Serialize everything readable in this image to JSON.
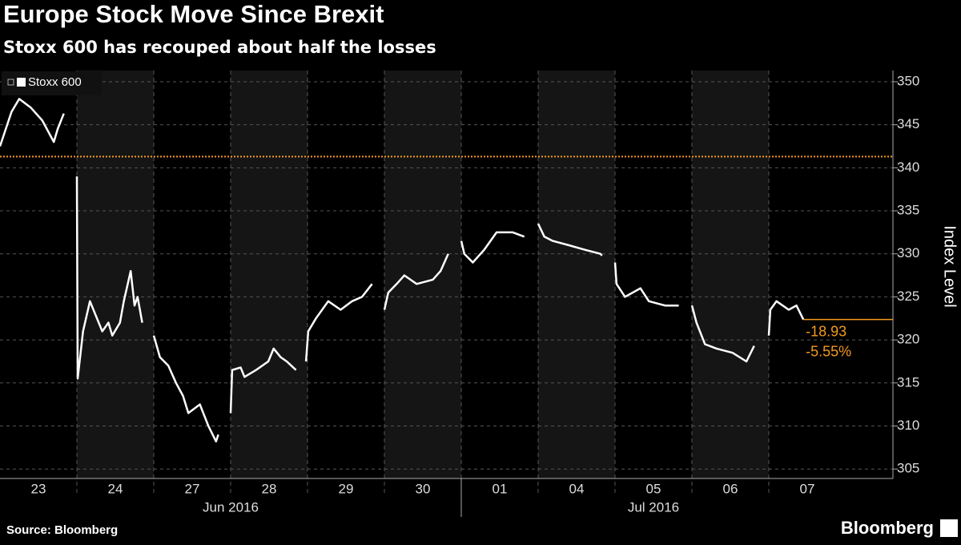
{
  "chart_data": {
    "type": "line",
    "title": "Europe Stock Move Since Brexit",
    "subtitle": "Stoxx 600 has recouped about half the losses",
    "y_axis_label": "Index Level",
    "source": "Source: Bloomberg",
    "brand": "Bloomberg",
    "x": [
      0,
      0.15,
      0.25,
      0.4,
      0.55,
      0.7,
      0.75,
      0.83,
      null,
      1.0,
      1.01,
      1.08,
      1.17,
      1.33,
      1.41,
      1.46,
      1.56,
      1.61,
      1.7,
      1.75,
      1.79,
      1.85,
      null,
      2.0,
      2.08,
      2.19,
      2.29,
      2.38,
      2.45,
      2.6,
      2.71,
      2.81,
      2.84,
      null,
      3.0,
      3.02,
      3.13,
      3.18,
      3.33,
      3.49,
      3.56,
      3.65,
      3.73,
      3.85,
      null,
      3.98,
      4.01,
      4.11,
      4.27,
      4.43,
      4.58,
      4.71,
      4.84,
      null,
      5.0,
      5.05,
      5.16,
      5.26,
      5.42,
      5.63,
      5.73,
      5.83,
      null,
      6.0,
      6.04,
      6.15,
      6.3,
      6.46,
      6.67,
      6.82,
      null,
      7.0,
      7.08,
      7.19,
      7.4,
      7.6,
      7.81,
      7.83,
      null,
      8.0,
      8.02,
      8.13,
      8.33,
      8.44,
      8.65,
      8.83,
      null,
      9.0,
      9.06,
      9.17,
      9.32,
      9.53,
      9.71,
      9.81,
      null,
      10.0,
      10.02,
      10.1,
      10.26,
      10.36,
      10.45
    ],
    "series": [
      {
        "name": "Stoxx 600",
        "color": "#ffffff",
        "values": [
          342.5,
          346.5,
          348,
          347,
          345.5,
          343,
          344.5,
          346.3,
          null,
          339,
          315.5,
          321,
          324.5,
          321,
          322,
          320.5,
          322,
          324.5,
          328,
          324,
          325,
          322,
          null,
          320.5,
          318,
          317,
          315,
          313.5,
          311.5,
          312.5,
          310,
          308.2,
          309,
          null,
          311.5,
          316.5,
          316.8,
          315.7,
          316.5,
          317.5,
          319,
          318,
          317.5,
          316.5,
          null,
          317.5,
          321,
          322.5,
          324.5,
          323.5,
          324.5,
          325,
          326.5,
          null,
          323.5,
          325.5,
          326.5,
          327.5,
          326.5,
          327,
          328,
          330,
          null,
          331.5,
          330,
          329,
          330.5,
          332.5,
          332.5,
          332,
          null,
          333.5,
          332,
          331.5,
          331,
          330.5,
          330,
          329.8,
          null,
          329,
          326.5,
          325,
          326,
          324.5,
          324,
          324,
          null,
          324,
          322,
          319.5,
          319,
          318.5,
          317.5,
          319.3,
          null,
          320.5,
          323.5,
          324.5,
          323.5,
          324,
          322.37
        ]
      }
    ],
    "xlim": [
      0,
      11.615
    ],
    "xticks": [
      {
        "value": 0.5,
        "label": "23"
      },
      {
        "value": 1.5,
        "label": "24"
      },
      {
        "value": 2.5,
        "label": "27"
      },
      {
        "value": 3.5,
        "label": "28"
      },
      {
        "value": 4.5,
        "label": "29"
      },
      {
        "value": 5.5,
        "label": "30"
      },
      {
        "value": 6.5,
        "label": "01"
      },
      {
        "value": 7.5,
        "label": "04"
      },
      {
        "value": 8.5,
        "label": "05"
      },
      {
        "value": 9.5,
        "label": "06"
      },
      {
        "value": 10.5,
        "label": "07"
      }
    ],
    "month_groups": [
      {
        "label": "Jun 2016",
        "count": 6
      },
      {
        "label": "Jul 2016",
        "count": 5
      }
    ],
    "ylim": [
      303.9,
      351.3
    ],
    "yticks": [
      305,
      310,
      315,
      320,
      325,
      330,
      335,
      340,
      345,
      350
    ],
    "grid": true,
    "shade_alternate_days": true,
    "reference_value": 341.3,
    "accent_color": "#f39a1e",
    "change_labels": [
      "-18.93",
      "-5.55%"
    ],
    "legend": "top-left"
  }
}
